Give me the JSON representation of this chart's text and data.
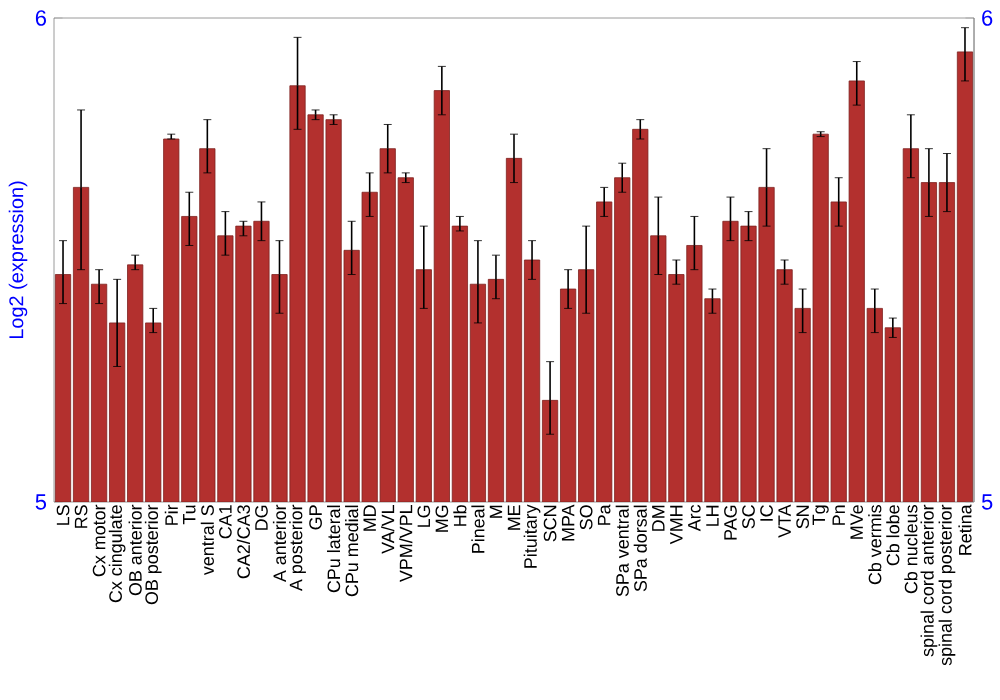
{
  "chart_data": {
    "type": "bar",
    "ylabel": "Log2 (expression)",
    "categories": [
      "LS",
      "RS",
      "Cx motor",
      "Cx cingulate",
      "OB anterior",
      "OB posterior",
      "Pir",
      "Tu",
      "ventral S",
      "CA1",
      "CA2/CA3",
      "DG",
      "A anterior",
      "A posterior",
      "GP",
      "CPu lateral",
      "CPu medial",
      "MD",
      "VA/VL",
      "VPM/VPL",
      "LG",
      "MG",
      "Hb",
      "Pineal",
      "M",
      "ME",
      "Pituitary",
      "SCN",
      "MPA",
      "SO",
      "Pa",
      "SPa ventral",
      "SPa dorsal",
      "DM",
      "VMH",
      "Arc",
      "LH",
      "PAG",
      "SC",
      "IC",
      "VTA",
      "SN",
      "Tg",
      "Pn",
      "MVe",
      "Cb vermis",
      "Cb lobe",
      "Cb nucleus",
      "spinal cord anterior",
      "spinal cord posterior",
      "Retina"
    ],
    "values": [
      5.47,
      5.65,
      5.45,
      5.37,
      5.49,
      5.37,
      5.75,
      5.59,
      5.73,
      5.55,
      5.57,
      5.58,
      5.47,
      5.86,
      5.8,
      5.79,
      5.52,
      5.64,
      5.73,
      5.67,
      5.48,
      5.85,
      5.57,
      5.45,
      5.46,
      5.71,
      5.5,
      5.21,
      5.44,
      5.48,
      5.62,
      5.67,
      5.77,
      5.55,
      5.47,
      5.53,
      5.42,
      5.58,
      5.57,
      5.65,
      5.48,
      5.4,
      5.76,
      5.62,
      5.87,
      5.4,
      5.36,
      5.73,
      5.66,
      5.66,
      5.93
    ],
    "errors": [
      [
        5.41,
        5.54
      ],
      [
        5.48,
        5.81
      ],
      [
        5.41,
        5.48
      ],
      [
        5.28,
        5.46
      ],
      [
        5.48,
        5.51
      ],
      [
        5.35,
        5.4
      ],
      [
        5.75,
        5.76
      ],
      [
        5.53,
        5.64
      ],
      [
        5.68,
        5.79
      ],
      [
        5.51,
        5.6
      ],
      [
        5.55,
        5.58
      ],
      [
        5.54,
        5.62
      ],
      [
        5.39,
        5.54
      ],
      [
        5.77,
        5.96
      ],
      [
        5.79,
        5.81
      ],
      [
        5.78,
        5.8
      ],
      [
        5.47,
        5.58
      ],
      [
        5.59,
        5.68
      ],
      [
        5.68,
        5.78
      ],
      [
        5.66,
        5.68
      ],
      [
        5.4,
        5.57
      ],
      [
        5.8,
        5.9
      ],
      [
        5.56,
        5.59
      ],
      [
        5.37,
        5.54
      ],
      [
        5.42,
        5.51
      ],
      [
        5.66,
        5.76
      ],
      [
        5.46,
        5.54
      ],
      [
        5.14,
        5.29
      ],
      [
        5.4,
        5.48
      ],
      [
        5.39,
        5.57
      ],
      [
        5.59,
        5.65
      ],
      [
        5.64,
        5.7
      ],
      [
        5.75,
        5.79
      ],
      [
        5.47,
        5.63
      ],
      [
        5.45,
        5.5
      ],
      [
        5.48,
        5.59
      ],
      [
        5.39,
        5.44
      ],
      [
        5.54,
        5.63
      ],
      [
        5.54,
        5.6
      ],
      [
        5.57,
        5.73
      ],
      [
        5.45,
        5.5
      ],
      [
        5.35,
        5.44
      ],
      [
        5.755,
        5.765
      ],
      [
        5.57,
        5.67
      ],
      [
        5.82,
        5.91
      ],
      [
        5.35,
        5.44
      ],
      [
        5.34,
        5.38
      ],
      [
        5.67,
        5.8
      ],
      [
        5.59,
        5.73
      ],
      [
        5.6,
        5.72
      ],
      [
        5.87,
        5.98
      ]
    ],
    "color": "#b3302e",
    "ylim": [
      5,
      6
    ],
    "yticks": [
      5,
      6
    ],
    "y2lim": [
      5,
      6
    ],
    "y2ticks": [
      5,
      6
    ],
    "grid": false
  }
}
